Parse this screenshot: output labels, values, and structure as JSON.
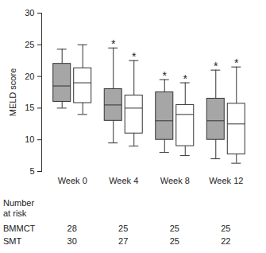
{
  "chart_data": {
    "type": "box",
    "y_label": "MELD score",
    "categories": [
      "Week 0",
      "Week 4",
      "Week 8",
      "Week 12"
    ],
    "series": [
      {
        "name": "BMMCT",
        "color": "#a6a6a6",
        "min": [
          15,
          9.5,
          8,
          7
        ],
        "q1": [
          16,
          13,
          10,
          10
        ],
        "median": [
          18.5,
          15.5,
          13,
          13
        ],
        "q3": [
          22,
          18,
          17.5,
          16.5
        ],
        "max": [
          24.3,
          24.5,
          19.5,
          21
        ],
        "annotations": [
          null,
          "*",
          "*",
          "*"
        ]
      },
      {
        "name": "SMT",
        "color": "#ffffff",
        "min": [
          14,
          9,
          7.5,
          6.3
        ],
        "q1": [
          15.8,
          11,
          9,
          7.7
        ],
        "median": [
          19,
          15,
          14,
          12.5
        ],
        "q3": [
          21.3,
          17,
          15.5,
          15.7
        ],
        "max": [
          25,
          22.5,
          19,
          21.5
        ],
        "annotations": [
          null,
          "*",
          "*",
          "*"
        ]
      }
    ],
    "ylim": [
      5,
      30
    ],
    "yticks": [
      5,
      10,
      15,
      20,
      25,
      30
    ],
    "number_at_risk": {
      "label": "Number at risk",
      "rows": [
        {
          "name": "BMMCT",
          "values": [
            28,
            25,
            25,
            25
          ]
        },
        {
          "name": "SMT",
          "values": [
            30,
            27,
            25,
            22
          ]
        }
      ]
    }
  }
}
